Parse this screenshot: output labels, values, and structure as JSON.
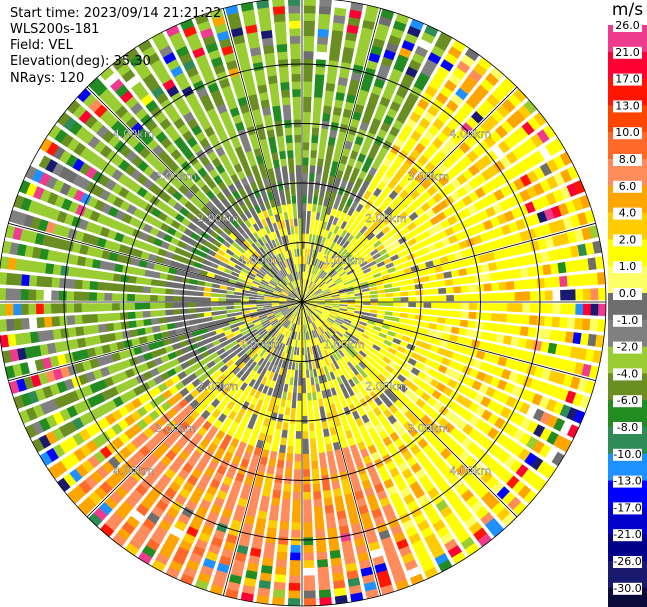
{
  "header": {
    "lines": [
      "Start time: 2023/09/14 21:21:22",
      "WLS200s-181",
      "Field: VEL",
      "Elevation(deg): 35.30",
      "NRays: 120"
    ]
  },
  "colorbar": {
    "title": "m/s",
    "labels": [
      "26.0",
      "21.0",
      "17.0",
      "13.0",
      "10.0",
      "8.0",
      "6.0",
      "4.0",
      "2.0",
      "1.0",
      "0.0",
      "-1.0",
      "-2.0",
      "-4.0",
      "-6.0",
      "-8.0",
      "-10.0",
      "-13.0",
      "-17.0",
      "-21.0",
      "-26.0",
      "-30.0"
    ],
    "colors": [
      "#ee3b8e",
      "#ff0033",
      "#ff1500",
      "#ff4500",
      "#ff6a2a",
      "#ff8c5a",
      "#ffa500",
      "#ffcc00",
      "#ffff00",
      "#ffff66",
      "#6e6e6e",
      "#808080",
      "#9acd32",
      "#6b8e23",
      "#228b22",
      "#2e8b57",
      "#1e90ff",
      "#0000ff",
      "#0000cd",
      "#00008b",
      "#191970",
      "#0b0b3b"
    ]
  },
  "chart_data": {
    "type": "heatmap",
    "projection": "polar PPI",
    "field": "VEL",
    "units": "m/s",
    "n_rays": 120,
    "elevation_deg": 35.3,
    "range_rings_km": [
      1.0,
      2.0,
      3.0,
      4.0
    ],
    "range_labels": [
      "1.00km",
      "2.00km",
      "3.00km",
      "4.00km"
    ],
    "value_range": [
      -30.0,
      26.0
    ],
    "max_range_km": 5.0,
    "gates_per_ray": 40,
    "pattern": {
      "near_field": "mixed gray and yellow speckle (~-1 to 2 m/s)",
      "north_west": "green (-2 to -6 m/s)",
      "east": "yellow (2 to 4 m/s)",
      "south": "orange to salmon (4 to 10 m/s)",
      "outer_edge": "noisy multicolor speckle"
    }
  }
}
